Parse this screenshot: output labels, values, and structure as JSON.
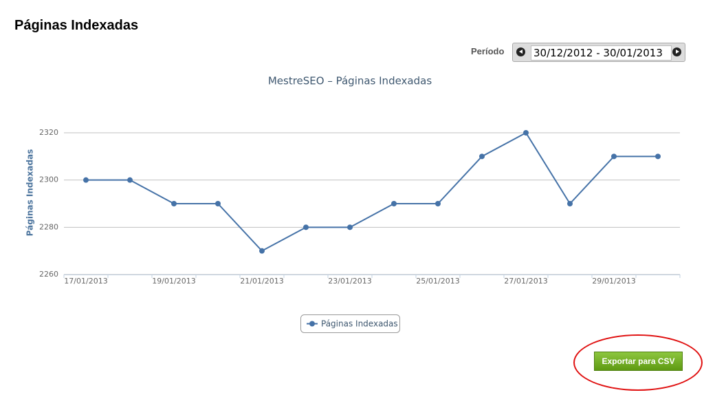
{
  "header": {
    "title": "Páginas Indexadas"
  },
  "period": {
    "label": "Período",
    "value": "30/12/2012 - 30/01/2013"
  },
  "chart_data": {
    "type": "line",
    "title": "MestreSEO – Páginas Indexadas",
    "y_label": "Páginas Indexadas",
    "categories": [
      "17/01/2013",
      null,
      "19/01/2013",
      null,
      "21/01/2013",
      null,
      "23/01/2013",
      null,
      "25/01/2013",
      null,
      "27/01/2013",
      null,
      "29/01/2013",
      null
    ],
    "series": [
      {
        "name": "Páginas Indexadas",
        "color": "#4572a7",
        "values": [
          2300,
          2300,
          2290,
          2290,
          2270,
          2280,
          2280,
          2290,
          2290,
          2310,
          2320,
          2290,
          2310,
          2310
        ]
      }
    ],
    "ylim": [
      2260,
      2320
    ],
    "yticks": [
      2260,
      2280,
      2300,
      2320
    ],
    "grid": true
  },
  "button": {
    "label": "Exportar para CSV"
  }
}
